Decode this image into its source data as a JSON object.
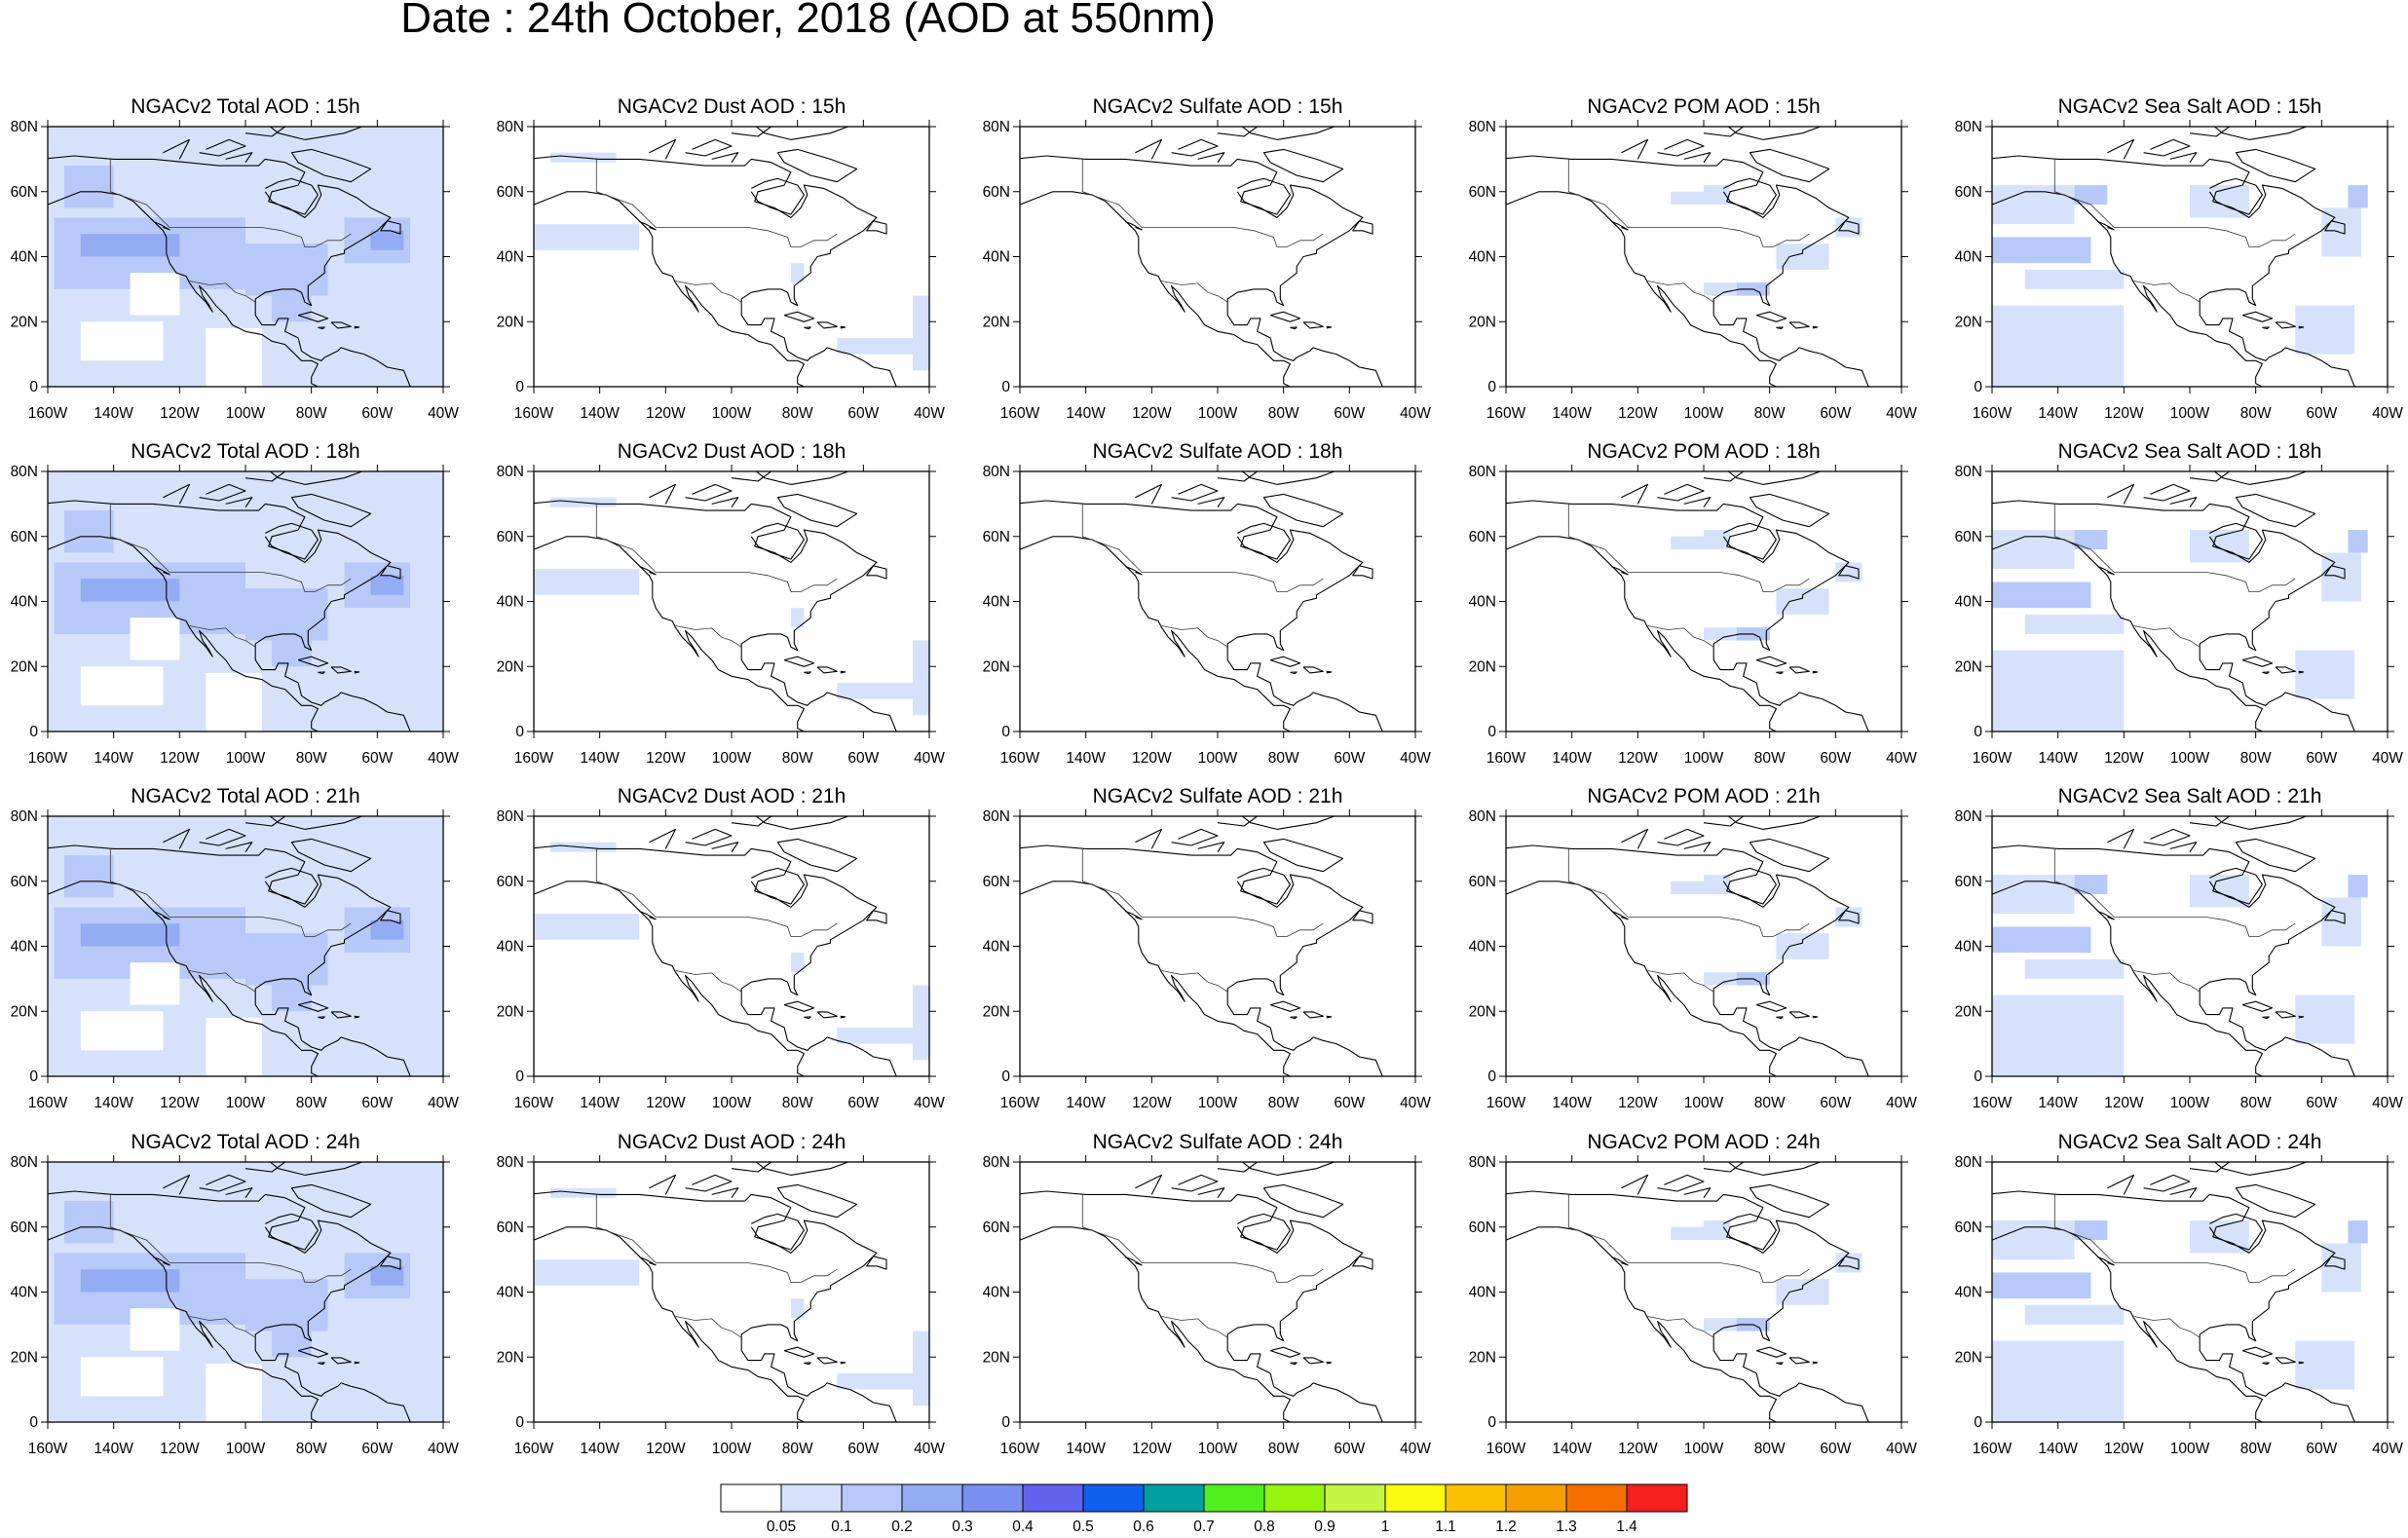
{
  "title": "Date : 24th October, 2018 (AOD at 550nm)",
  "lat_labels": [
    "0",
    "20N",
    "40N",
    "60N",
    "80N"
  ],
  "lon_labels": [
    "160W",
    "140W",
    "120W",
    "100W",
    "80W",
    "60W",
    "40W"
  ],
  "colors": {
    "level1": "#d6e2fc",
    "level2": "#b7c9f8",
    "level3": "#94acf3",
    "coast": "#000000"
  },
  "rows": [
    {
      "hour": "15h",
      "panels": [
        {
          "title": "NGACv2 Total AOD : 15h",
          "species": "total"
        },
        {
          "title": "NGACv2 Dust AOD : 15h",
          "species": "dust"
        },
        {
          "title": "NGACv2 Sulfate AOD : 15h",
          "species": "sulfate"
        },
        {
          "title": "NGACv2 POM AOD : 15h",
          "species": "pom"
        },
        {
          "title": "NGACv2 Sea Salt AOD : 15h",
          "species": "seasalt"
        }
      ]
    },
    {
      "hour": "18h",
      "panels": [
        {
          "title": "NGACv2 Total AOD : 18h",
          "species": "total"
        },
        {
          "title": "NGACv2 Dust AOD : 18h",
          "species": "dust"
        },
        {
          "title": "NGACv2 Sulfate AOD : 18h",
          "species": "sulfate"
        },
        {
          "title": "NGACv2 POM AOD : 18h",
          "species": "pom"
        },
        {
          "title": "NGACv2 Sea Salt AOD : 18h",
          "species": "seasalt"
        }
      ]
    },
    {
      "hour": "21h",
      "panels": [
        {
          "title": "NGACv2 Total AOD : 21h",
          "species": "total"
        },
        {
          "title": "NGACv2 Dust AOD : 21h",
          "species": "dust"
        },
        {
          "title": "NGACv2 Sulfate AOD : 21h",
          "species": "sulfate"
        },
        {
          "title": "NGACv2 POM AOD : 21h",
          "species": "pom"
        },
        {
          "title": "NGACv2 Sea Salt AOD : 21h",
          "species": "seasalt"
        }
      ]
    },
    {
      "hour": "24h",
      "panels": [
        {
          "title": "NGACv2 Total AOD : 24h",
          "species": "total"
        },
        {
          "title": "NGACv2 Dust AOD : 24h",
          "species": "dust"
        },
        {
          "title": "NGACv2 Sulfate AOD : 24h",
          "species": "sulfate"
        },
        {
          "title": "NGACv2 POM AOD : 24h",
          "species": "pom"
        },
        {
          "title": "NGACv2 Sea Salt  AOD : 24h",
          "species": "seasalt"
        }
      ]
    }
  ],
  "colorbar": {
    "colors": [
      "#ffffff",
      "#d6e2fc",
      "#b7c9f8",
      "#94acf3",
      "#7b8ff1",
      "#5f63ee",
      "#0f60ee",
      "#009f9f",
      "#52ef1f",
      "#97f40f",
      "#c4f542",
      "#fbfb0f",
      "#f9c100",
      "#f79f00",
      "#f56f00",
      "#f51f1f"
    ],
    "labels": [
      "0.05",
      "0.1",
      "0.2",
      "0.3",
      "0.4",
      "0.5",
      "0.6",
      "0.7",
      "0.8",
      "0.9",
      "1",
      "1.1",
      "1.2",
      "1.3",
      "1.4"
    ]
  }
}
